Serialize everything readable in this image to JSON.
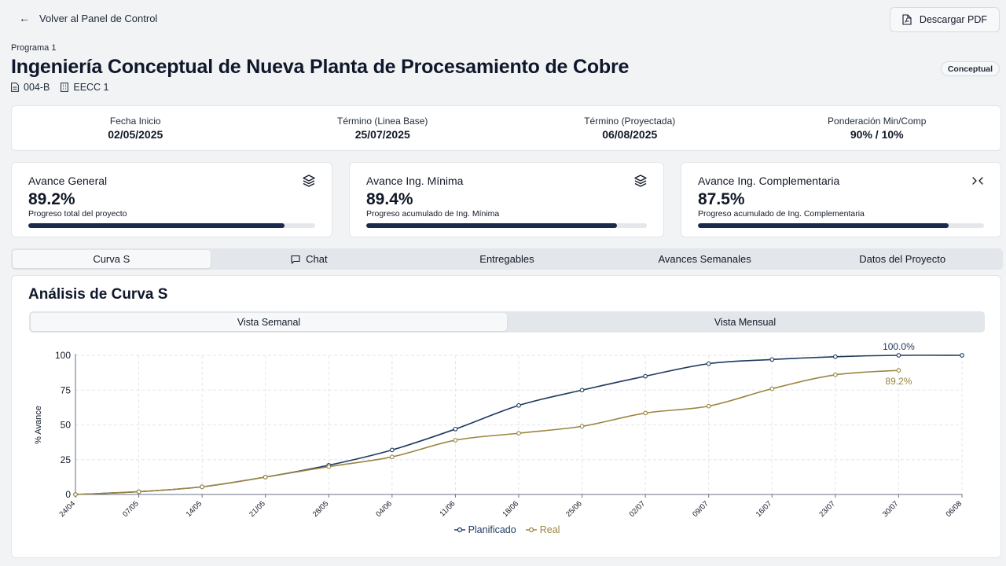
{
  "header": {
    "back_label": "Volver al Panel de Control",
    "pdf_label": "Descargar PDF"
  },
  "program": {
    "label": "Programa 1",
    "title": "Ingeniería Conceptual de Nueva Planta de Procesamiento de Cobre",
    "code": "004-B",
    "contract": "EECC 1",
    "phase": "Conceptual"
  },
  "dates": [
    {
      "label": "Fecha Inicio",
      "value": "02/05/2025"
    },
    {
      "label": "Término (Linea Base)",
      "value": "25/07/2025"
    },
    {
      "label": "Término (Proyectada)",
      "value": "06/08/2025"
    },
    {
      "label": "Ponderación Min/Comp",
      "value": "90% / 10%"
    }
  ],
  "kpis": [
    {
      "title": "Avance General",
      "value": "89.2%",
      "subtitle": "Progreso total del proyecto",
      "progress": 0.892,
      "icon": "layers-icon"
    },
    {
      "title": "Avance Ing. Mínima",
      "value": "89.4%",
      "subtitle": "Progreso acumulado de Ing. Mínima",
      "progress": 0.894,
      "icon": "layers-icon"
    },
    {
      "title": "Avance Ing. Complementaria",
      "value": "87.5%",
      "subtitle": "Progreso acumulado de Ing. Complementaria",
      "progress": 0.875,
      "icon": "collapse-icon"
    }
  ],
  "tabs": [
    {
      "label": "Curva S",
      "active": true
    },
    {
      "label": "Chat",
      "icon": "chat-icon"
    },
    {
      "label": "Entregables"
    },
    {
      "label": "Avances Semanales"
    },
    {
      "label": "Datos del Proyecto"
    }
  ],
  "chart_section": {
    "title": "Análisis de Curva S",
    "views": [
      {
        "label": "Vista Semanal",
        "active": true
      },
      {
        "label": "Vista Mensual"
      }
    ]
  },
  "colors": {
    "planned": "#1e3a5f",
    "actual": "#9a8540",
    "progress_fill": "#1b2a4a"
  },
  "chart_data": {
    "type": "line",
    "ylabel": "% Avance",
    "xlabel": "",
    "ylim": [
      0,
      100
    ],
    "yticks": [
      0,
      25,
      50,
      75,
      100
    ],
    "grid": true,
    "legend_position": "bottom-center",
    "x": [
      "24/04",
      "07/05",
      "14/05",
      "21/05",
      "28/05",
      "04/06",
      "11/06",
      "18/06",
      "25/06",
      "02/07",
      "09/07",
      "16/07",
      "23/07",
      "30/07",
      "06/08"
    ],
    "series": [
      {
        "name": "Planificado",
        "values": [
          0,
          2,
          5.5,
          12.5,
          21,
          32,
          47,
          64,
          75,
          85,
          94,
          97,
          99,
          100,
          100
        ],
        "end_label": "100.0%"
      },
      {
        "name": "Real",
        "values": [
          0,
          2,
          5.5,
          12.5,
          20,
          27,
          39,
          44,
          49,
          58.5,
          63.5,
          76,
          86,
          89.2,
          null
        ],
        "end_label": "89.2%"
      }
    ]
  }
}
